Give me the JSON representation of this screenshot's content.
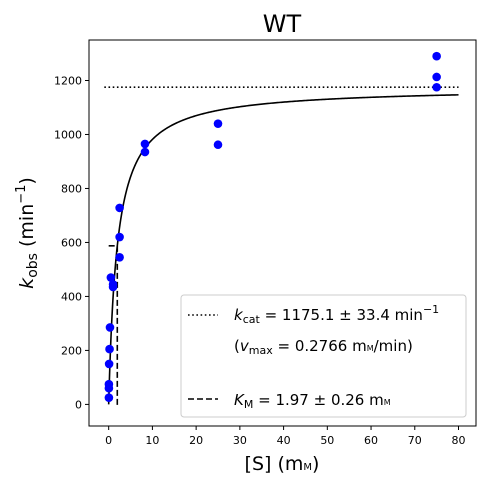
{
  "chart_data": {
    "type": "scatter",
    "title": "WT",
    "xlabel": {
      "base": "[S] (m",
      "unit_sc": "m",
      "tail": ")"
    },
    "ylabel": {
      "main": "k",
      "sub": "obs",
      "mid": " (min",
      "sup": "−1",
      "end": ")"
    },
    "xlim": [
      -4.5,
      84
    ],
    "ylim": [
      -80,
      1350
    ],
    "xticks": [
      0,
      10,
      20,
      30,
      40,
      50,
      60,
      70,
      80
    ],
    "yticks": [
      0,
      200,
      400,
      600,
      800,
      1000,
      1200
    ],
    "grid": false,
    "series": [
      {
        "kind": "points",
        "color": "#0000ff",
        "x": [
          0.05,
          0.05,
          0.05,
          0.1,
          0.2,
          0.3,
          0.5,
          1.0,
          1.0,
          2.5,
          2.5,
          2.5,
          8.3,
          8.3,
          25,
          25,
          75,
          75,
          75
        ],
        "y": [
          25,
          60,
          75,
          150,
          205,
          285,
          470,
          435,
          445,
          545,
          620,
          728,
          935,
          965,
          962,
          1040,
          1175,
          1213,
          1290
        ]
      },
      {
        "kind": "fit",
        "color": "#000000",
        "model": "michaelis-menten",
        "kcat": 1175.1,
        "km": 1.97,
        "x_range": [
          0,
          80
        ]
      },
      {
        "kind": "hline",
        "style": "dotted",
        "color": "#000000",
        "y": 1175.1,
        "x_range": [
          -1,
          80
        ]
      },
      {
        "kind": "km-marker",
        "style": "dashed",
        "color": "#000000",
        "x": 1.97,
        "y": 587.5
      }
    ],
    "legend": {
      "position": "lower-right",
      "entries": [
        {
          "style": "dotted",
          "text": "k_cat = 1175.1 ± 33.4 min⁻¹",
          "main": "k",
          "sub": "cat",
          "rest": " = 1175.1 ± 33.4 min",
          "sup": "−1"
        },
        {
          "style": "none",
          "text": "(v_max = 0.2766 mM/min)",
          "open": "(",
          "main": "v",
          "sub": "max",
          "rest": " = 0.2766 m",
          "unit_sc": "m",
          "tail": "/min)"
        },
        {
          "style": "dashed",
          "text": "K_M = 1.97 ± 0.26 mM",
          "main": "K",
          "sub": "M",
          "rest": " = 1.97 ± 0.26 m",
          "unit_sc": "m"
        }
      ]
    }
  }
}
